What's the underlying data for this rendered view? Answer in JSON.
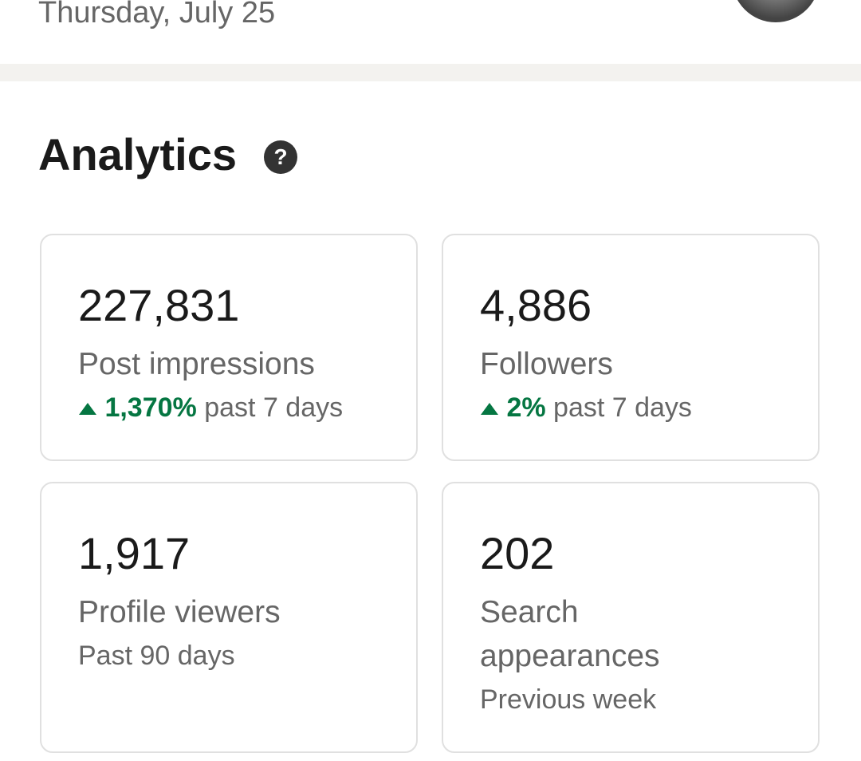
{
  "header": {
    "date": "Thursday, July 25"
  },
  "section": {
    "title": "Analytics"
  },
  "cards": [
    {
      "value": "227,831",
      "label": "Post impressions",
      "change": "1,370%",
      "period": "past 7 days"
    },
    {
      "value": "4,886",
      "label": "Followers",
      "change": "2%",
      "period": "past 7 days"
    },
    {
      "value": "1,917",
      "label": "Profile viewers",
      "note": "Past 90 days"
    },
    {
      "value": "202",
      "label": "Search appearances",
      "note": "Previous week"
    }
  ]
}
